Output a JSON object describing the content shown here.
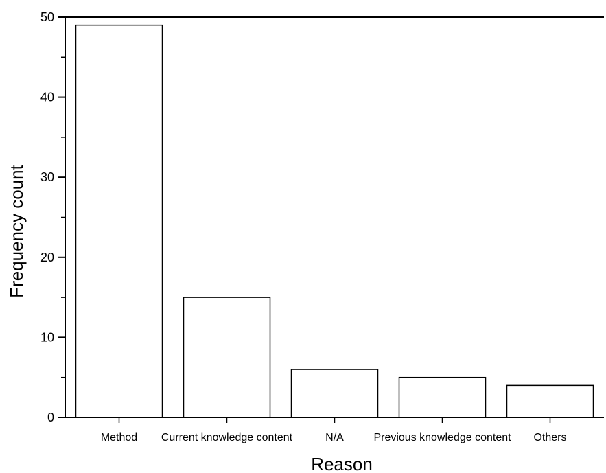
{
  "chart_data": {
    "type": "bar",
    "title": "",
    "xlabel": "Reason",
    "ylabel": "Frequency count",
    "categories": [
      "Method",
      "Current knowledge content",
      "N/A",
      "Previous knowledge content",
      "Others"
    ],
    "values": [
      49,
      15,
      6,
      5,
      4
    ],
    "ylim": [
      0,
      50
    ],
    "yticks": [
      0,
      10,
      20,
      30,
      40,
      50
    ],
    "grid": false,
    "legend": "none",
    "bar_fill": "#ffffff",
    "bar_stroke": "#000000"
  }
}
